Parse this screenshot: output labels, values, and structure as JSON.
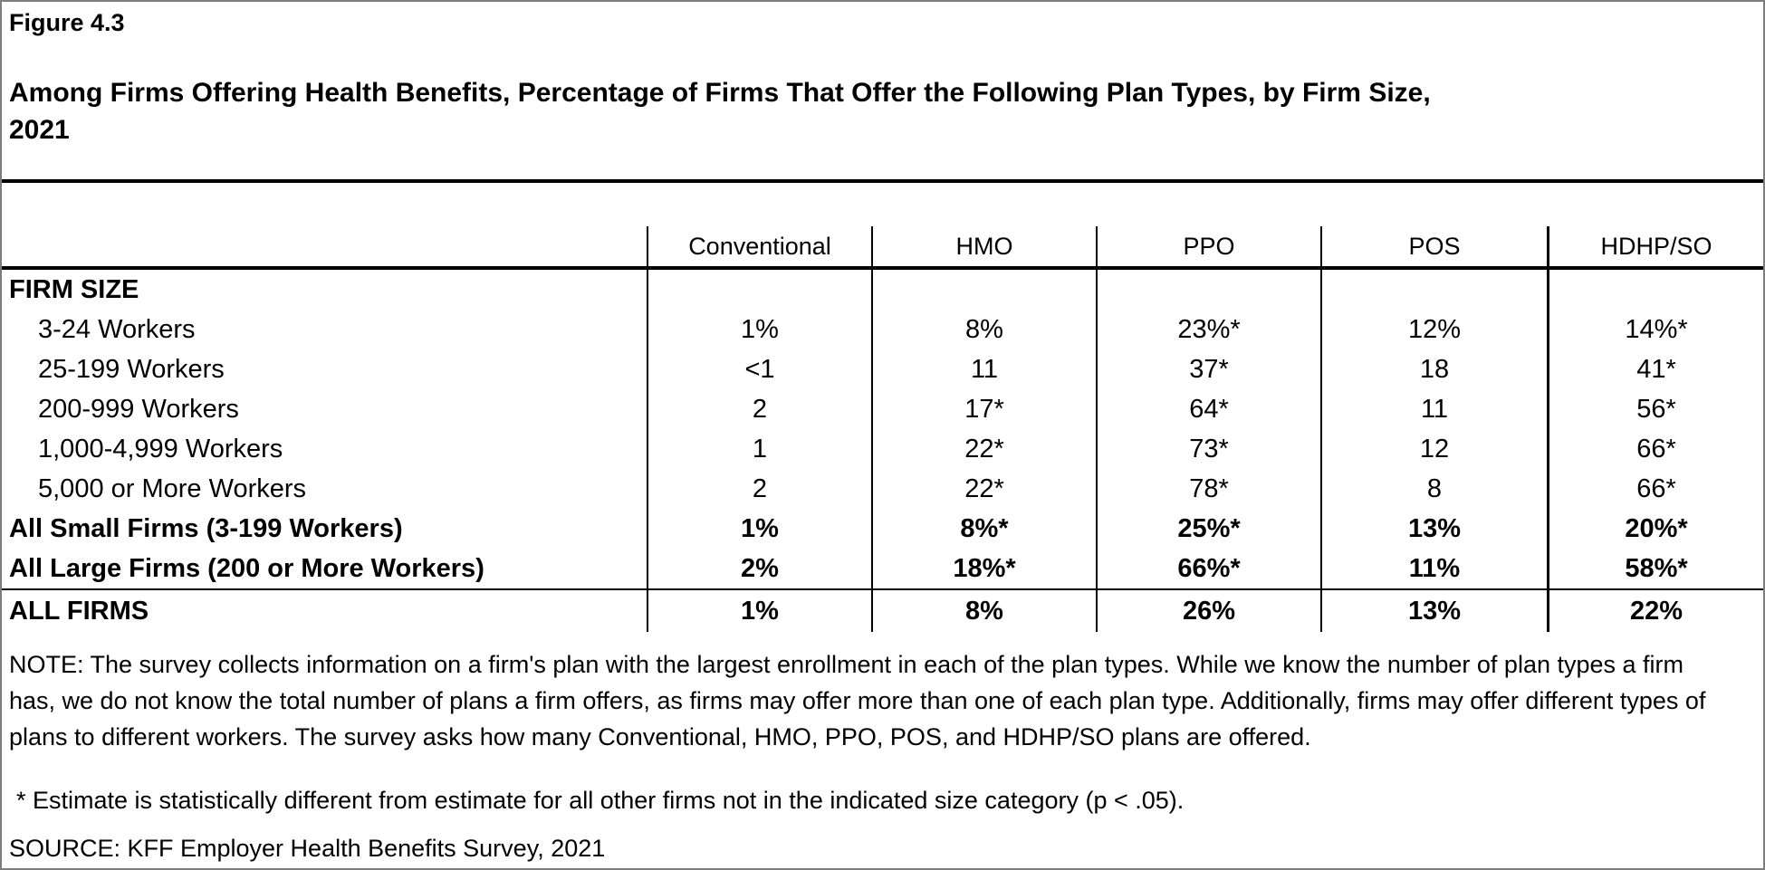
{
  "figure_label": "Figure 4.3",
  "title_lines": [
    "Among Firms Offering Health Benefits, Percentage of Firms That Offer the Following Plan Types, by Firm Size,",
    "2021"
  ],
  "table": {
    "column_headers": [
      "Conventional",
      "HMO",
      "PPO",
      "POS",
      "HDHP/SO"
    ],
    "rows": [
      {
        "label": "FIRM SIZE",
        "bold": true,
        "indent": false,
        "values": []
      },
      {
        "label": "3-24 Workers",
        "bold": false,
        "indent": true,
        "values": [
          "1%",
          "8%",
          "23%*",
          "12%",
          "14%*"
        ]
      },
      {
        "label": "25-199 Workers",
        "bold": false,
        "indent": true,
        "values": [
          "<1",
          "11",
          "37*",
          "18",
          "41*"
        ]
      },
      {
        "label": "200-999 Workers",
        "bold": false,
        "indent": true,
        "values": [
          "2",
          "17*",
          "64*",
          "11",
          "56*"
        ]
      },
      {
        "label": "1,000-4,999 Workers",
        "bold": false,
        "indent": true,
        "values": [
          "1",
          "22*",
          "73*",
          "12",
          "66*"
        ]
      },
      {
        "label": "5,000 or More Workers",
        "bold": false,
        "indent": true,
        "values": [
          "2",
          "22*",
          "78*",
          "8",
          "66*"
        ]
      },
      {
        "label": "All Small Firms (3-199 Workers)",
        "bold": true,
        "indent": false,
        "values": [
          "1%",
          "8%*",
          "25%*",
          "13%",
          "20%*"
        ]
      },
      {
        "label": "All Large Firms (200 or More Workers)",
        "bold": true,
        "indent": false,
        "values": [
          "2%",
          "18%*",
          "66%*",
          "11%",
          "58%*"
        ]
      }
    ],
    "all_firms_row": {
      "label": "ALL FIRMS",
      "bold": true,
      "indent": false,
      "values": [
        "1%",
        "8%",
        "26%",
        "13%",
        "22%"
      ]
    }
  },
  "notes": {
    "note": "NOTE: The survey collects information on a firm's plan with the largest enrollment in each of the plan types. While we know the number of plan types a firm has, we do not know the total number of plans a firm offers, as firms may offer more than one of each plan type. Additionally, firms may offer different types of plans to different workers. The survey asks how many Conventional, HMO, PPO, POS, and HDHP/SO plans are offered.",
    "asterisk": "* Estimate is statistically different from estimate for all other firms not in the indicated size category (p < .05).",
    "source": "SOURCE: KFF Employer Health Benefits Survey, 2021"
  },
  "chart_data": {
    "type": "table",
    "title": "Figure 4.3 — Among Firms Offering Health Benefits, Percentage of Firms That Offer the Following Plan Types, by Firm Size, 2021",
    "columns": [
      "Firm Size",
      "Conventional",
      "HMO",
      "PPO",
      "POS",
      "HDHP/SO"
    ],
    "rows": [
      [
        "3-24 Workers",
        "1%",
        "8%",
        "23%*",
        "12%",
        "14%*"
      ],
      [
        "25-199 Workers",
        "<1",
        "11",
        "37*",
        "18",
        "41*"
      ],
      [
        "200-999 Workers",
        "2",
        "17*",
        "64*",
        "11",
        "56*"
      ],
      [
        "1,000-4,999 Workers",
        "1",
        "22*",
        "73*",
        "12",
        "66*"
      ],
      [
        "5,000 or More Workers",
        "2",
        "22*",
        "78*",
        "8",
        "66*"
      ],
      [
        "All Small Firms (3-199 Workers)",
        "1%",
        "8%*",
        "25%*",
        "13%",
        "20%*"
      ],
      [
        "All Large Firms (200 or More Workers)",
        "2%",
        "18%*",
        "66%*",
        "11%",
        "58%*"
      ],
      [
        "ALL FIRMS",
        "1%",
        "8%",
        "26%",
        "13%",
        "22%"
      ]
    ]
  }
}
